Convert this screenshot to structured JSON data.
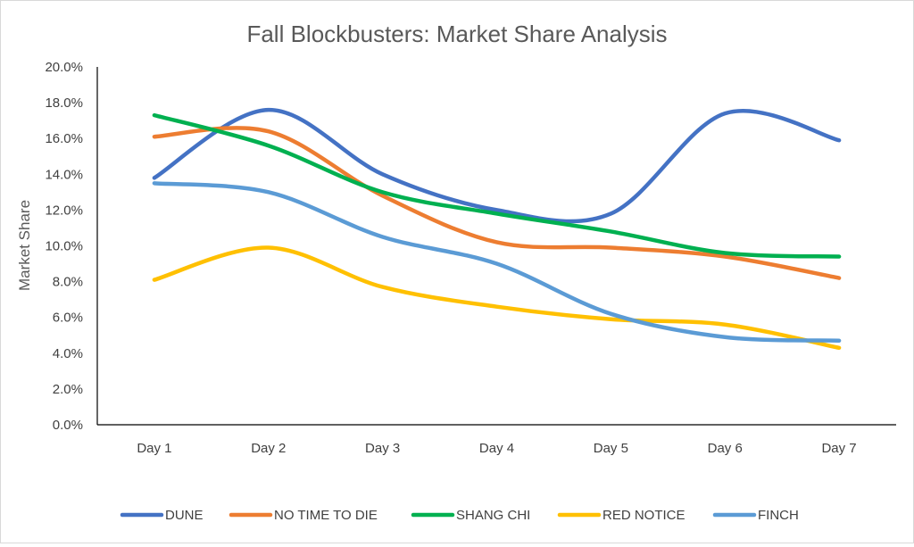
{
  "chart_data": {
    "type": "line",
    "title": "Fall Blockbusters: Market Share Analysis",
    "xlabel": "",
    "ylabel": "Market Share",
    "ylim": [
      0,
      20
    ],
    "y_tick_labels": [
      "0.0%",
      "2.0%",
      "4.0%",
      "6.0%",
      "8.0%",
      "10.0%",
      "12.0%",
      "14.0%",
      "16.0%",
      "18.0%",
      "20.0%"
    ],
    "categories": [
      "Day 1",
      "Day 2",
      "Day 3",
      "Day 4",
      "Day 5",
      "Day 6",
      "Day 7"
    ],
    "grid": false,
    "legend_position": "bottom",
    "smooth": true,
    "series": [
      {
        "name": "DUNE",
        "color": "#4472C4",
        "values": [
          13.8,
          17.6,
          14.0,
          12.0,
          11.8,
          17.4,
          15.9
        ]
      },
      {
        "name": "NO TIME TO DIE",
        "color": "#ED7D31",
        "values": [
          16.1,
          16.4,
          12.8,
          10.2,
          9.9,
          9.4,
          8.2
        ]
      },
      {
        "name": "SHANG CHI",
        "color": "#00B050",
        "values": [
          17.3,
          15.6,
          13.0,
          11.8,
          10.8,
          9.6,
          9.4
        ]
      },
      {
        "name": "RED NOTICE",
        "color": "#FFC000",
        "values": [
          8.1,
          9.9,
          7.7,
          6.6,
          5.9,
          5.6,
          4.3
        ]
      },
      {
        "name": "FINCH",
        "color": "#5B9BD5",
        "values": [
          13.5,
          13.0,
          10.5,
          9.0,
          6.2,
          4.9,
          4.7
        ]
      }
    ]
  }
}
